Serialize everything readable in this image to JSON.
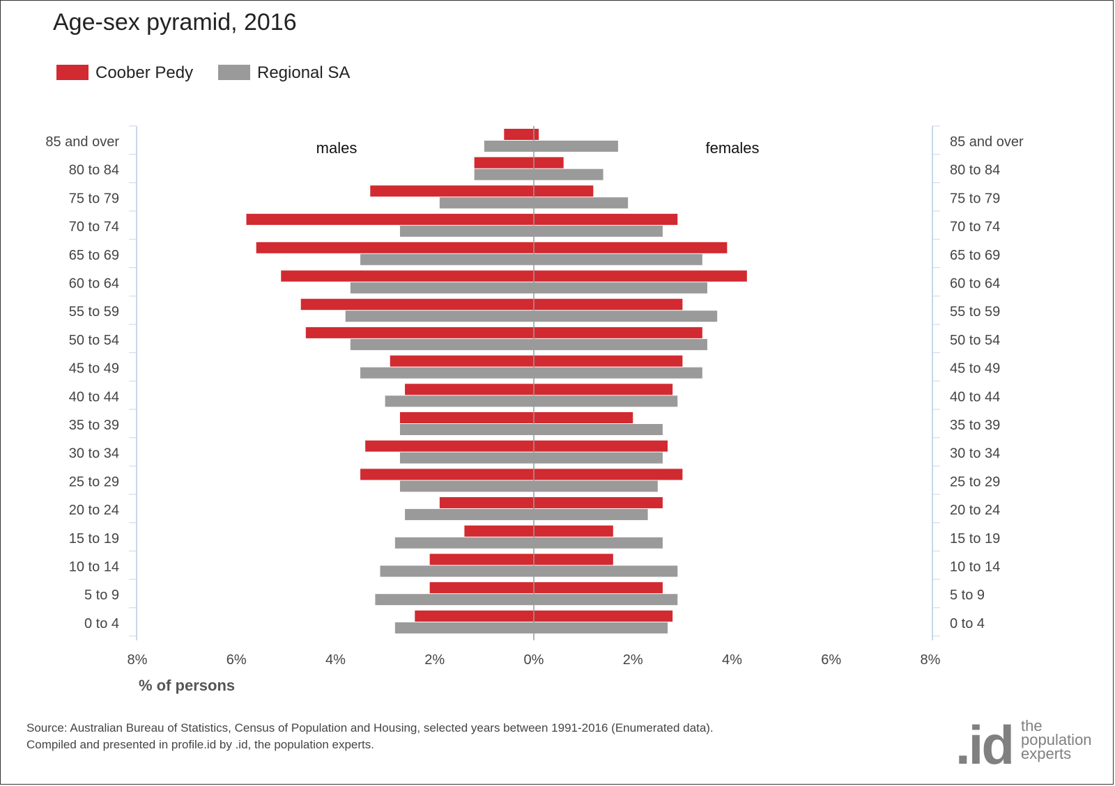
{
  "title": "Age-sex pyramid, 2016",
  "legend": [
    {
      "label": "Coober Pedy",
      "color": "#d12a31"
    },
    {
      "label": "Regional SA",
      "color": "#9a9a9a"
    }
  ],
  "source": {
    "line1": "Source: Australian Bureau of Statistics, Census of Population and Housing, selected years between 1991-2016 (Enumerated data).",
    "line2": "Compiled and presented in profile.id by .id, the population experts."
  },
  "logo": {
    "mark": ".id",
    "line1": "the",
    "line2": "population",
    "line3": "experts"
  },
  "chart_data": {
    "type": "bar",
    "orientation": "horizontal-pyramid",
    "title": "Age-sex pyramid, 2016",
    "xlabel": "% of persons",
    "side_labels": {
      "left": "males",
      "right": "females"
    },
    "xlim": [
      -8,
      8
    ],
    "x_ticks": [
      "8%",
      "6%",
      "4%",
      "2%",
      "0%",
      "2%",
      "4%",
      "6%",
      "8%"
    ],
    "categories": [
      "85 and over",
      "80 to 84",
      "75 to 79",
      "70 to 74",
      "65 to 69",
      "60 to 64",
      "55 to 59",
      "50 to 54",
      "45 to 49",
      "40 to 44",
      "35 to 39",
      "30 to 34",
      "25 to 29",
      "20 to 24",
      "15 to 19",
      "10 to 14",
      "5 to 9",
      "0 to 4"
    ],
    "series": [
      {
        "name": "Coober Pedy",
        "color": "#d12a31",
        "males": [
          0.6,
          1.2,
          3.3,
          5.8,
          5.6,
          5.1,
          4.7,
          4.6,
          2.9,
          2.6,
          2.7,
          3.4,
          3.5,
          1.9,
          1.4,
          2.1,
          2.1,
          2.4
        ],
        "females": [
          0.1,
          0.6,
          1.2,
          2.9,
          3.9,
          4.3,
          3.0,
          3.4,
          3.0,
          2.8,
          2.0,
          2.7,
          3.0,
          2.6,
          1.6,
          1.6,
          2.6,
          2.8
        ]
      },
      {
        "name": "Regional SA",
        "color": "#9a9a9a",
        "males": [
          1.0,
          1.2,
          1.9,
          2.7,
          3.5,
          3.7,
          3.8,
          3.7,
          3.5,
          3.0,
          2.7,
          2.7,
          2.7,
          2.6,
          2.8,
          3.1,
          3.2,
          2.8
        ],
        "females": [
          1.7,
          1.4,
          1.9,
          2.6,
          3.4,
          3.5,
          3.7,
          3.5,
          3.4,
          2.9,
          2.6,
          2.6,
          2.5,
          2.3,
          2.6,
          2.9,
          2.9,
          2.7
        ]
      }
    ]
  }
}
